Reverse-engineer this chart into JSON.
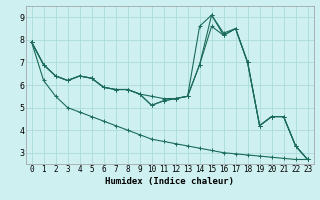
{
  "title": "",
  "xlabel": "Humidex (Indice chaleur)",
  "ylabel": "",
  "bg_color": "#cff0f0",
  "grid_color": "#aadada",
  "line_color": "#1a6b5a",
  "xlim": [
    -0.5,
    23.5
  ],
  "ylim": [
    2.5,
    9.5
  ],
  "xticks": [
    0,
    1,
    2,
    3,
    4,
    5,
    6,
    7,
    8,
    9,
    10,
    11,
    12,
    13,
    14,
    15,
    16,
    17,
    18,
    19,
    20,
    21,
    22,
    23
  ],
  "yticks": [
    3,
    4,
    5,
    6,
    7,
    8,
    9
  ],
  "lines": [
    [
      7.9,
      6.9,
      6.4,
      6.2,
      6.4,
      6.3,
      5.9,
      5.8,
      5.8,
      5.6,
      5.5,
      5.4,
      5.4,
      5.5,
      8.6,
      9.1,
      8.3,
      8.5,
      7.0,
      4.2,
      4.6,
      4.6,
      3.3,
      2.7
    ],
    [
      7.9,
      6.9,
      6.4,
      6.2,
      6.4,
      6.3,
      5.9,
      5.8,
      5.8,
      5.6,
      5.1,
      5.3,
      5.4,
      5.5,
      6.9,
      8.6,
      8.2,
      8.5,
      7.0,
      4.2,
      4.6,
      4.6,
      3.3,
      2.7
    ],
    [
      7.9,
      6.9,
      6.4,
      6.2,
      6.4,
      6.3,
      5.9,
      5.8,
      5.8,
      5.6,
      5.1,
      5.3,
      5.4,
      5.5,
      6.9,
      9.1,
      8.2,
      8.5,
      7.0,
      4.2,
      4.6,
      4.6,
      3.3,
      2.7
    ],
    [
      7.9,
      6.2,
      5.5,
      5.0,
      4.8,
      4.6,
      4.4,
      4.2,
      4.0,
      3.8,
      3.6,
      3.5,
      3.4,
      3.3,
      3.2,
      3.1,
      3.0,
      2.95,
      2.9,
      2.85,
      2.8,
      2.75,
      2.7,
      2.7
    ]
  ],
  "tick_fontsize": 5.5,
  "xlabel_fontsize": 6.5
}
